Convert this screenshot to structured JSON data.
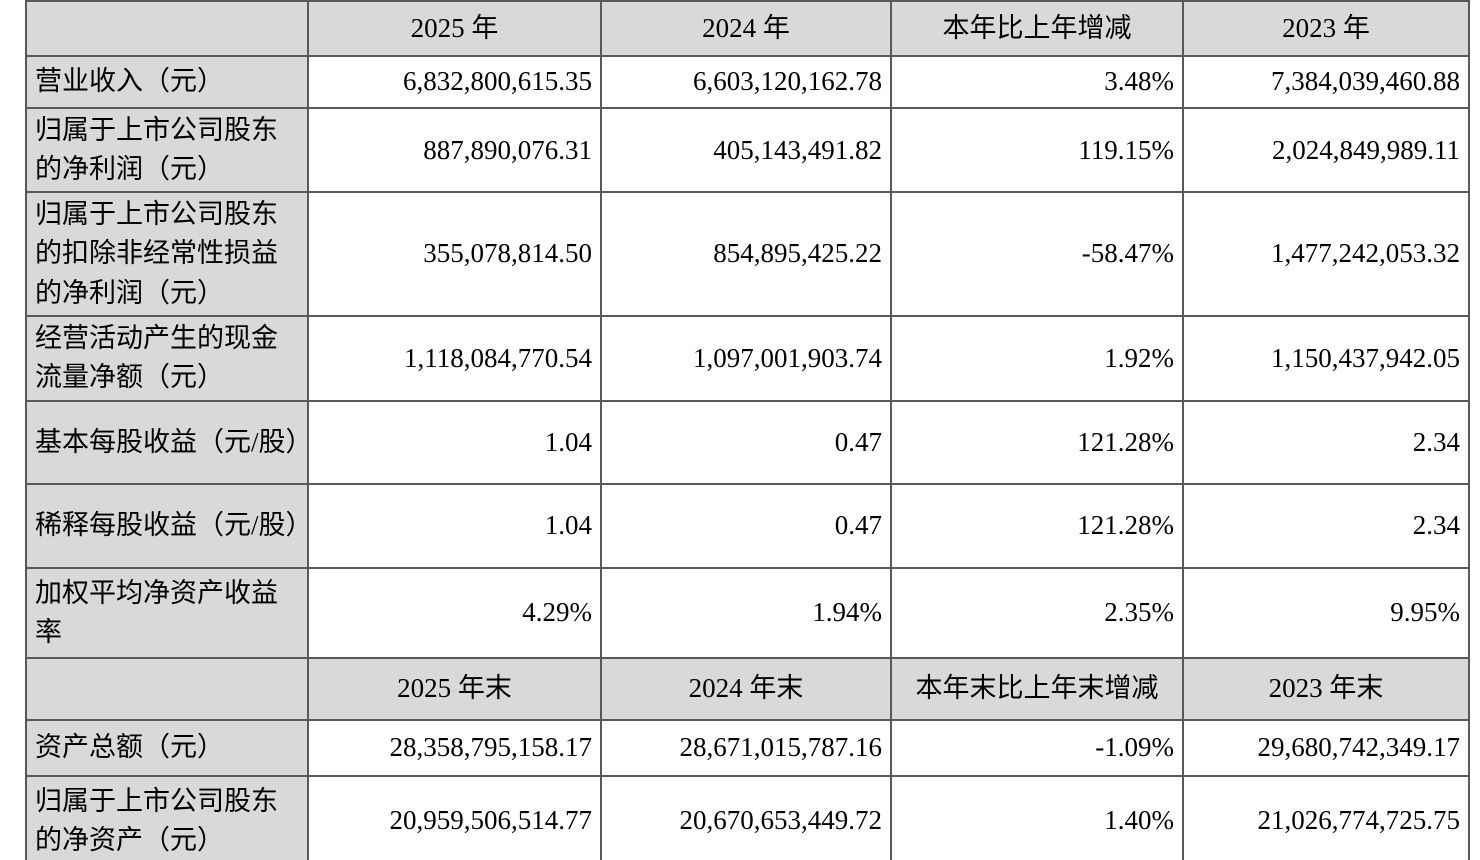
{
  "table": {
    "section1": {
      "header": {
        "corner": "",
        "cols": [
          "2025 年",
          "2024 年",
          "本年比上年增减",
          "2023 年"
        ]
      },
      "rows": [
        {
          "label": "营业收入（元）",
          "values": [
            "6,832,800,615.35",
            "6,603,120,162.78",
            "3.48%",
            "7,384,039,460.88"
          ]
        },
        {
          "label": "归属于上市公司股东的净利润（元）",
          "values": [
            "887,890,076.31",
            "405,143,491.82",
            "119.15%",
            "2,024,849,989.11"
          ]
        },
        {
          "label": "归属于上市公司股东的扣除非经常性损益的净利润（元）",
          "values": [
            "355,078,814.50",
            "854,895,425.22",
            "-58.47%",
            "1,477,242,053.32"
          ]
        },
        {
          "label": "经营活动产生的现金流量净额（元）",
          "values": [
            "1,118,084,770.54",
            "1,097,001,903.74",
            "1.92%",
            "1,150,437,942.05"
          ]
        },
        {
          "label": "基本每股收益（元/股）",
          "values": [
            "1.04",
            "0.47",
            "121.28%",
            "2.34"
          ]
        },
        {
          "label": "稀释每股收益（元/股）",
          "values": [
            "1.04",
            "0.47",
            "121.28%",
            "2.34"
          ]
        },
        {
          "label": "加权平均净资产收益率",
          "values": [
            "4.29%",
            "1.94%",
            "2.35%",
            "9.95%"
          ]
        }
      ]
    },
    "section2": {
      "header": {
        "corner": "",
        "cols": [
          "2025 年末",
          "2024 年末",
          "本年末比上年末增减",
          "2023 年末"
        ]
      },
      "rows": [
        {
          "label": "资产总额（元）",
          "values": [
            "28,358,795,158.17",
            "28,671,015,787.16",
            "-1.09%",
            "29,680,742,349.17"
          ]
        },
        {
          "label": "归属于上市公司股东的净资产（元）",
          "values": [
            "20,959,506,514.77",
            "20,670,653,449.72",
            "1.40%",
            "21,026,774,725.75"
          ]
        }
      ]
    }
  },
  "colors": {
    "header_fill": "#d9d9d9",
    "cell_fill": "#ffffff",
    "border": "#595959",
    "text": "#000000"
  }
}
